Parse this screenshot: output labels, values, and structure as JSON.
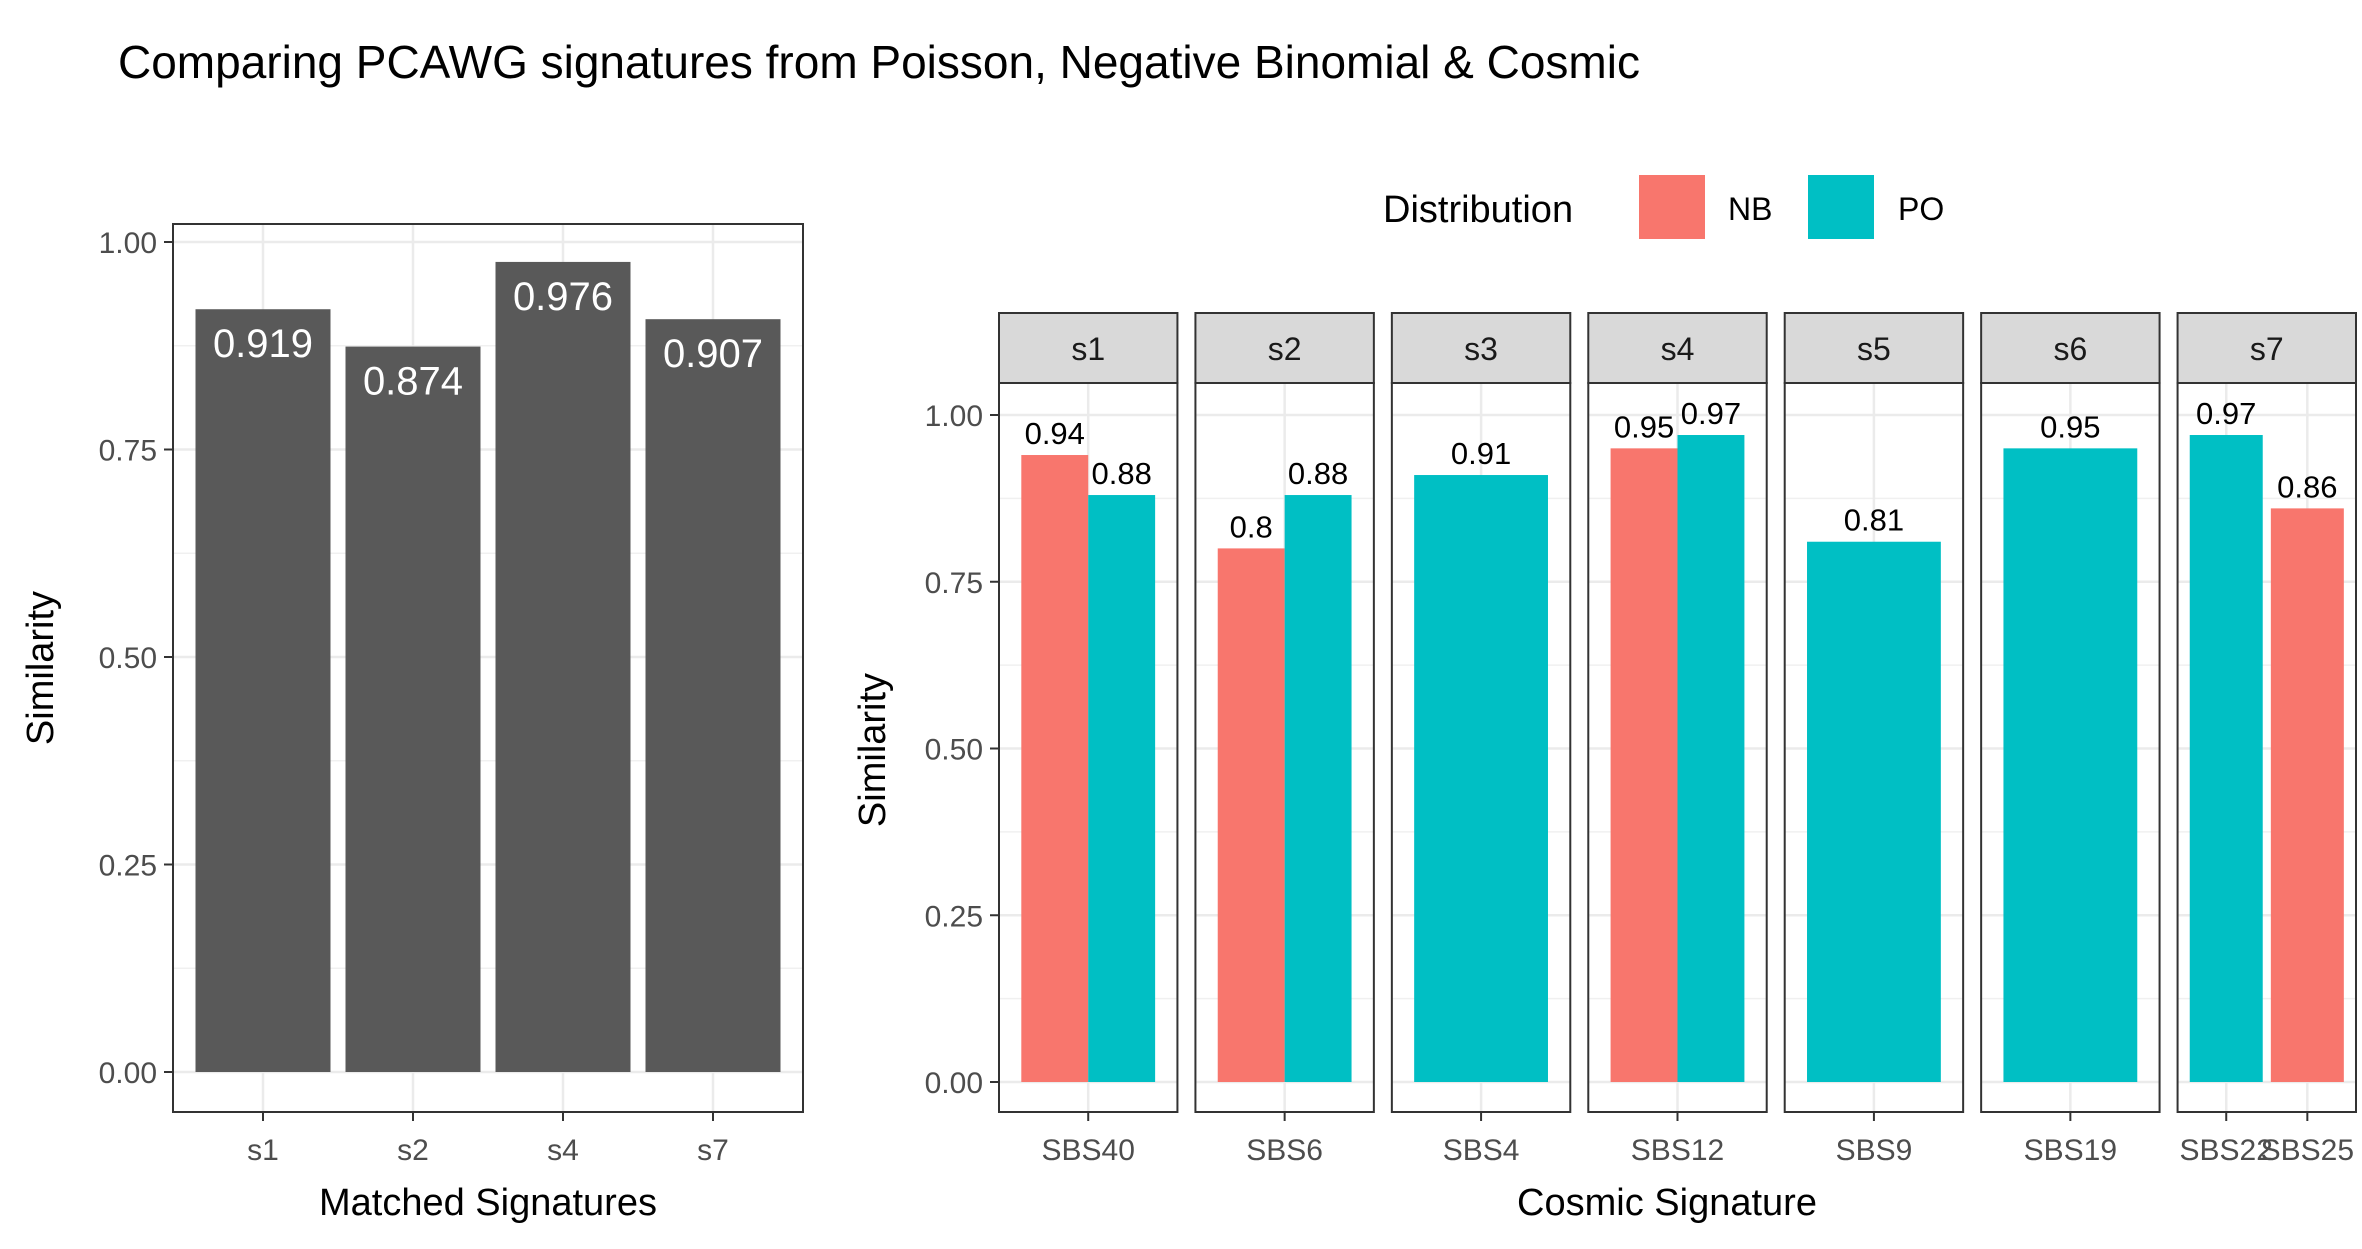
{
  "title": "Comparing PCAWG signatures from Poisson, Negative Binomial & Cosmic",
  "colors": {
    "NB": "#F8766D",
    "PO": "#00BFC4",
    "bar": "#595959",
    "bar_label": "#ffffff"
  },
  "chart_data": [
    {
      "type": "bar",
      "categories": [
        "s1",
        "s2",
        "s4",
        "s7"
      ],
      "values": [
        0.919,
        0.874,
        0.976,
        0.907
      ],
      "data_labels": [
        "0.919",
        "0.874",
        "0.976",
        "0.907"
      ],
      "xlabel": "Matched Signatures",
      "ylabel": "Similarity",
      "ylim": [
        0,
        1
      ],
      "yticks": [
        "0.00",
        "0.25",
        "0.50",
        "0.75",
        "1.00"
      ],
      "grid": true
    },
    {
      "type": "bar",
      "xlabel": "Cosmic Signature",
      "ylabel": "Similarity",
      "ylim": [
        0,
        1
      ],
      "yticks": [
        "0.00",
        "0.25",
        "0.50",
        "0.75",
        "1.00"
      ],
      "grid": true,
      "legend": {
        "title": "Distribution",
        "position": "top",
        "entries": [
          "NB",
          "PO"
        ]
      },
      "facets": [
        {
          "label": "s1",
          "categories": [
            "SBS40"
          ],
          "bars": [
            {
              "category": "SBS40",
              "dist": "NB",
              "value": 0.94,
              "label": "0.94"
            },
            {
              "category": "SBS40",
              "dist": "PO",
              "value": 0.88,
              "label": "0.88"
            }
          ]
        },
        {
          "label": "s2",
          "categories": [
            "SBS6"
          ],
          "bars": [
            {
              "category": "SBS6",
              "dist": "NB",
              "value": 0.8,
              "label": "0.8"
            },
            {
              "category": "SBS6",
              "dist": "PO",
              "value": 0.88,
              "label": "0.88"
            }
          ]
        },
        {
          "label": "s3",
          "categories": [
            "SBS4"
          ],
          "bars": [
            {
              "category": "SBS4",
              "dist": "PO",
              "value": 0.91,
              "label": "0.91"
            }
          ]
        },
        {
          "label": "s4",
          "categories": [
            "SBS12"
          ],
          "bars": [
            {
              "category": "SBS12",
              "dist": "NB",
              "value": 0.95,
              "label": "0.95"
            },
            {
              "category": "SBS12",
              "dist": "PO",
              "value": 0.97,
              "label": "0.97"
            }
          ]
        },
        {
          "label": "s5",
          "categories": [
            "SBS9"
          ],
          "bars": [
            {
              "category": "SBS9",
              "dist": "PO",
              "value": 0.81,
              "label": "0.81"
            }
          ]
        },
        {
          "label": "s6",
          "categories": [
            "SBS19"
          ],
          "bars": [
            {
              "category": "SBS19",
              "dist": "PO",
              "value": 0.95,
              "label": "0.95"
            }
          ]
        },
        {
          "label": "s7",
          "categories": [
            "SBS22",
            "SBS25"
          ],
          "bars": [
            {
              "category": "SBS22",
              "dist": "PO",
              "value": 0.97,
              "label": "0.97"
            },
            {
              "category": "SBS25",
              "dist": "NB",
              "value": 0.86,
              "label": "0.86"
            }
          ]
        }
      ]
    }
  ]
}
